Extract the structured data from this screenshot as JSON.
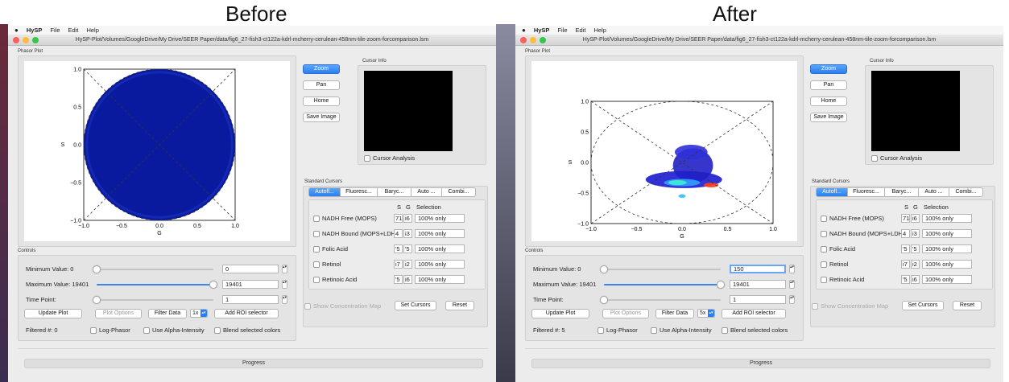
{
  "panels": [
    {
      "headline": "Before",
      "menu": {
        "app": "HySP",
        "file": "File",
        "edit": "Edit",
        "help": "Help"
      },
      "window_title": "HySP-Plot/Volumes/GoogleDrive/My Drive/SEER Paper/data/fig6_27-fish3-ct122a-kdrl-mcherry-cerulean-458nm-tile-zoom-forcomparison.lsm",
      "phasor_group_label": "Phasor Plot",
      "plot": {
        "xlabel": "G",
        "ylabel": "S",
        "xticks": [
          "−1.0",
          "−0.5",
          "0.0",
          "0.5",
          "1.0"
        ],
        "yticks": [
          "1.0",
          "0.5",
          "0.0",
          "−0.5",
          "−1.0"
        ],
        "display": "filled-blue-disk"
      },
      "buttons": {
        "zoom": "Zoom",
        "pan": "Pan",
        "home": "Home",
        "save_image": "Save Image"
      },
      "cursor_info_label": "Cursor Info",
      "cursor_analysis_label": "Cursor Analysis",
      "standard_cursors_label": "Standard Cursors",
      "tabs": [
        "Autofl...",
        "Fluoresc...",
        "Baryc...",
        "Auto ...",
        "Combi..."
      ],
      "cursor_header": {
        "s": "S",
        "g": "G",
        "selection": "Selection"
      },
      "cursor_rows": [
        {
          "name": "NADH Free (MOPS)",
          "s": "71",
          "g": "i6",
          "selection": "100% only"
        },
        {
          "name": "NADH Bound (MOPS+LDH)",
          "s": "4",
          "g": "i3",
          "selection": "100% only"
        },
        {
          "name": "Folic Acid",
          "s": "'5",
          "g": "'5",
          "selection": "100% only"
        },
        {
          "name": "Retinol",
          "s": "i7",
          "g": "i2",
          "selection": "100% only"
        },
        {
          "name": "Retinoic Acid",
          "s": "'5",
          "g": "i6",
          "selection": "100% only"
        }
      ],
      "show_concentration_map": "Show Concentration Map",
      "set_cursors": "Set Cursors",
      "reset": "Reset",
      "controls_label": "Controls",
      "min_label": "Minimum Value: 0",
      "min_value": "0",
      "min_fraction": 0.0,
      "max_label": "Maximum Value: 19401",
      "max_value": "19401",
      "max_fraction": 1.0,
      "time_label": "Time Point:",
      "time_value": "1",
      "update_plot": "Update Plot",
      "plot_options": "Plot Options",
      "filter_data": "Filter Data",
      "filter_multiplier": "1x",
      "add_roi": "Add ROI selector",
      "filtered": "Filtered #: 0",
      "log_phasor": "Log-Phasor",
      "alpha_intensity": "Use Alpha-Intensity",
      "blend_colors": "Blend selected colors",
      "progress": "Progress"
    },
    {
      "headline": "After",
      "menu": {
        "app": "HySP",
        "file": "File",
        "edit": "Edit",
        "help": "Help"
      },
      "window_title": "HySP-Plot/Volumes/GoogleDrive/My Drive/SEER Paper/data/fig6_27-fish3-ct122a-kdrl-mcherry-cerulean-458nm-tile-zoom-forcomparison.lsm",
      "phasor_group_label": "Phasor Plot",
      "plot": {
        "xlabel": "G",
        "ylabel": "S",
        "xticks": [
          "−1.0",
          "−0.5",
          "0.0",
          "0.5",
          "1.0"
        ],
        "yticks": [
          "1.0",
          "0.5",
          "0.0",
          "−0.5",
          "−1.0"
        ],
        "display": "filtered-density-cluster"
      },
      "buttons": {
        "zoom": "Zoom",
        "pan": "Pan",
        "home": "Home",
        "save_image": "Save Image"
      },
      "cursor_info_label": "Cursor Info",
      "cursor_analysis_label": "Cursor Analysis",
      "standard_cursors_label": "Standard Cursors",
      "tabs": [
        "Autofl...",
        "Fluoresc...",
        "Baryc...",
        "Auto ...",
        "Combi..."
      ],
      "cursor_header": {
        "s": "S",
        "g": "G",
        "selection": "Selection"
      },
      "cursor_rows": [
        {
          "name": "NADH Free (MOPS)",
          "s": "71",
          "g": "i6",
          "selection": "100% only"
        },
        {
          "name": "NADH Bound (MOPS+LDH)",
          "s": "4",
          "g": "i3",
          "selection": "100% only"
        },
        {
          "name": "Folic Acid",
          "s": "'5",
          "g": "'5",
          "selection": "100% only"
        },
        {
          "name": "Retinol",
          "s": "i7",
          "g": "i2",
          "selection": "100% only"
        },
        {
          "name": "Retinoic Acid",
          "s": "'5",
          "g": "i6",
          "selection": "100% only"
        }
      ],
      "show_concentration_map": "Show Concentration Map",
      "set_cursors": "Set Cursors",
      "reset": "Reset",
      "controls_label": "Controls",
      "min_label": "Minimum Value: 0",
      "min_value": "150",
      "min_fraction": 0.0,
      "max_label": "Maximum Value: 19401",
      "max_value": "19401",
      "max_fraction": 1.0,
      "time_label": "Time Point:",
      "time_value": "1",
      "update_plot": "Update Plot",
      "plot_options": "Plot Options",
      "filter_data": "Filter Data",
      "filter_multiplier": "5x",
      "add_roi": "Add ROI selector",
      "filtered": "Filtered #: 5",
      "log_phasor": "Log-Phasor",
      "alpha_intensity": "Use Alpha-Intensity",
      "blend_colors": "Blend selected colors",
      "progress": "Progress"
    }
  ],
  "colors": {
    "accent": "#2a7ff0",
    "scatter_blue": "#0a1a9e",
    "panel_bg": "#ececec"
  }
}
